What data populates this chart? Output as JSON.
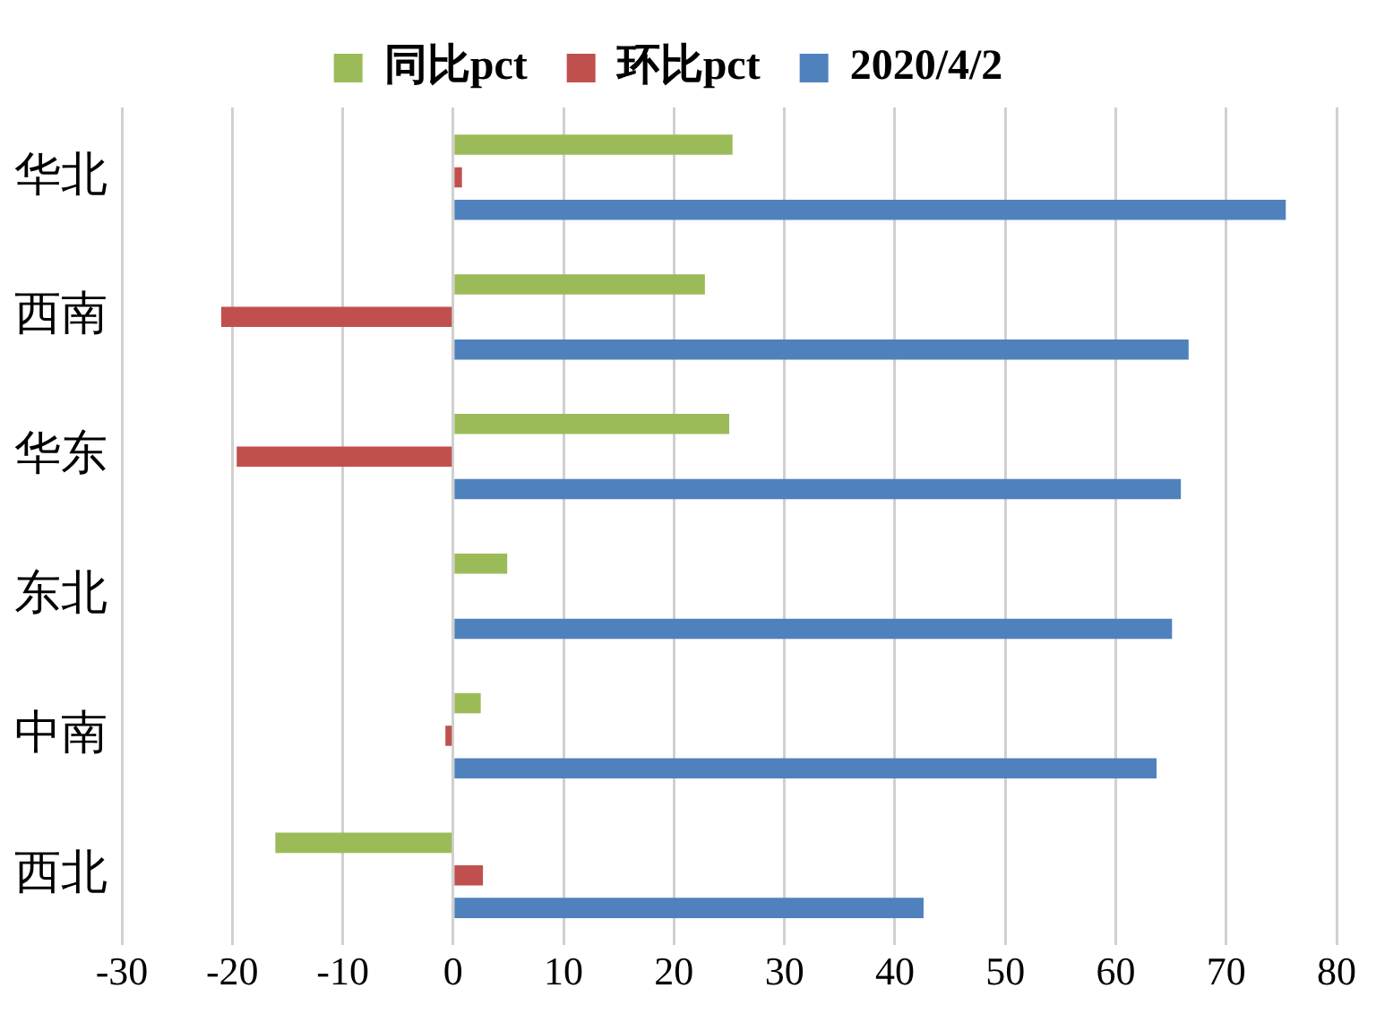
{
  "chart_data": {
    "type": "bar",
    "orientation": "horizontal",
    "categories": [
      "华北",
      "西南",
      "华东",
      "东北",
      "中南",
      "西北"
    ],
    "series": [
      {
        "name": "同比pct",
        "color": "#9bbb59",
        "values": [
          25.3,
          22.8,
          25.0,
          4.9,
          2.5,
          -16.1
        ]
      },
      {
        "name": "环比pct",
        "color": "#c0504d",
        "values": [
          0.8,
          -21.0,
          -19.6,
          null,
          -0.7,
          2.7
        ]
      },
      {
        "name": "2020/4/2",
        "color": "#4f81bd",
        "values": [
          75.4,
          66.6,
          65.9,
          65.1,
          63.7,
          42.6
        ]
      }
    ],
    "xlim": [
      -30,
      80
    ],
    "xticks": [
      -30,
      -20,
      -10,
      0,
      10,
      20,
      30,
      40,
      50,
      60,
      70,
      80
    ],
    "grid": "x",
    "legend": "top"
  }
}
